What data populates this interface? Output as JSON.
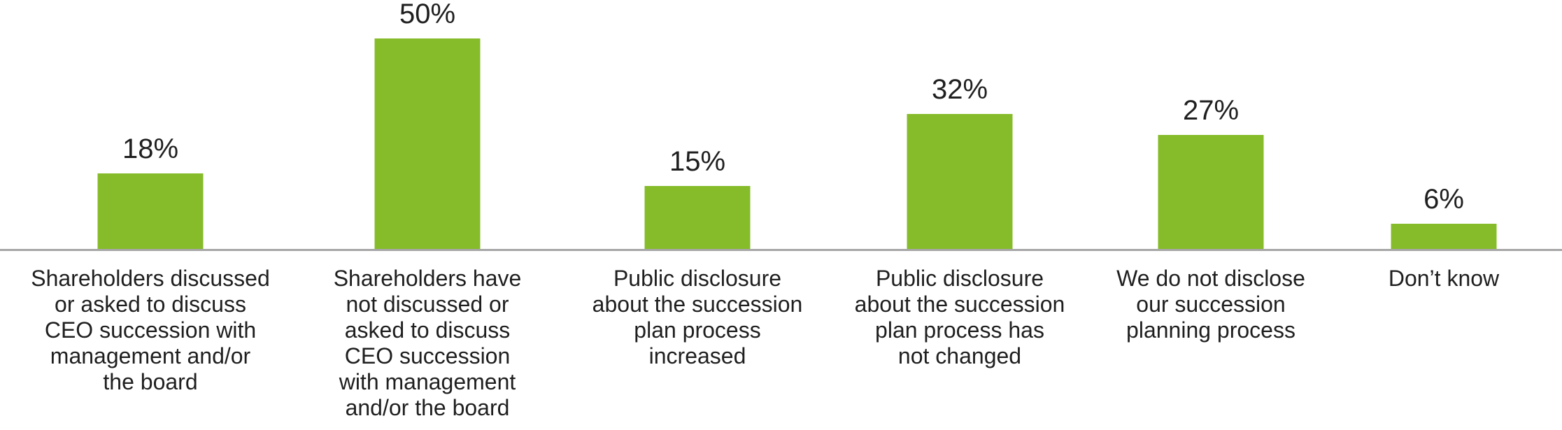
{
  "chart_data": {
    "type": "bar",
    "title": "",
    "xlabel": "",
    "ylabel": "",
    "categories": [
      "Shareholders discussed\nor asked to discuss\nCEO succession with\nmanagement and/or\nthe board",
      "Shareholders have\nnot discussed or\nasked to discuss\nCEO succession\nwith management\nand/or the board",
      "Public disclosure\nabout the succession\nplan process\nincreased",
      "Public disclosure\nabout the succession\nplan process has\nnot changed",
      "We do not disclose\nour succession\nplanning process",
      "Don’t know"
    ],
    "values": [
      18,
      50,
      15,
      32,
      27,
      6
    ],
    "value_labels": [
      "18%",
      "50%",
      "15%",
      "32%",
      "27%",
      "6%"
    ],
    "ylim": [
      0,
      55
    ],
    "grid": false,
    "legend": false,
    "colors": {
      "bar": "#86bc29",
      "axis_line": "#a6a6a6",
      "text": "#1f1f1f",
      "background": "#ffffff"
    }
  }
}
